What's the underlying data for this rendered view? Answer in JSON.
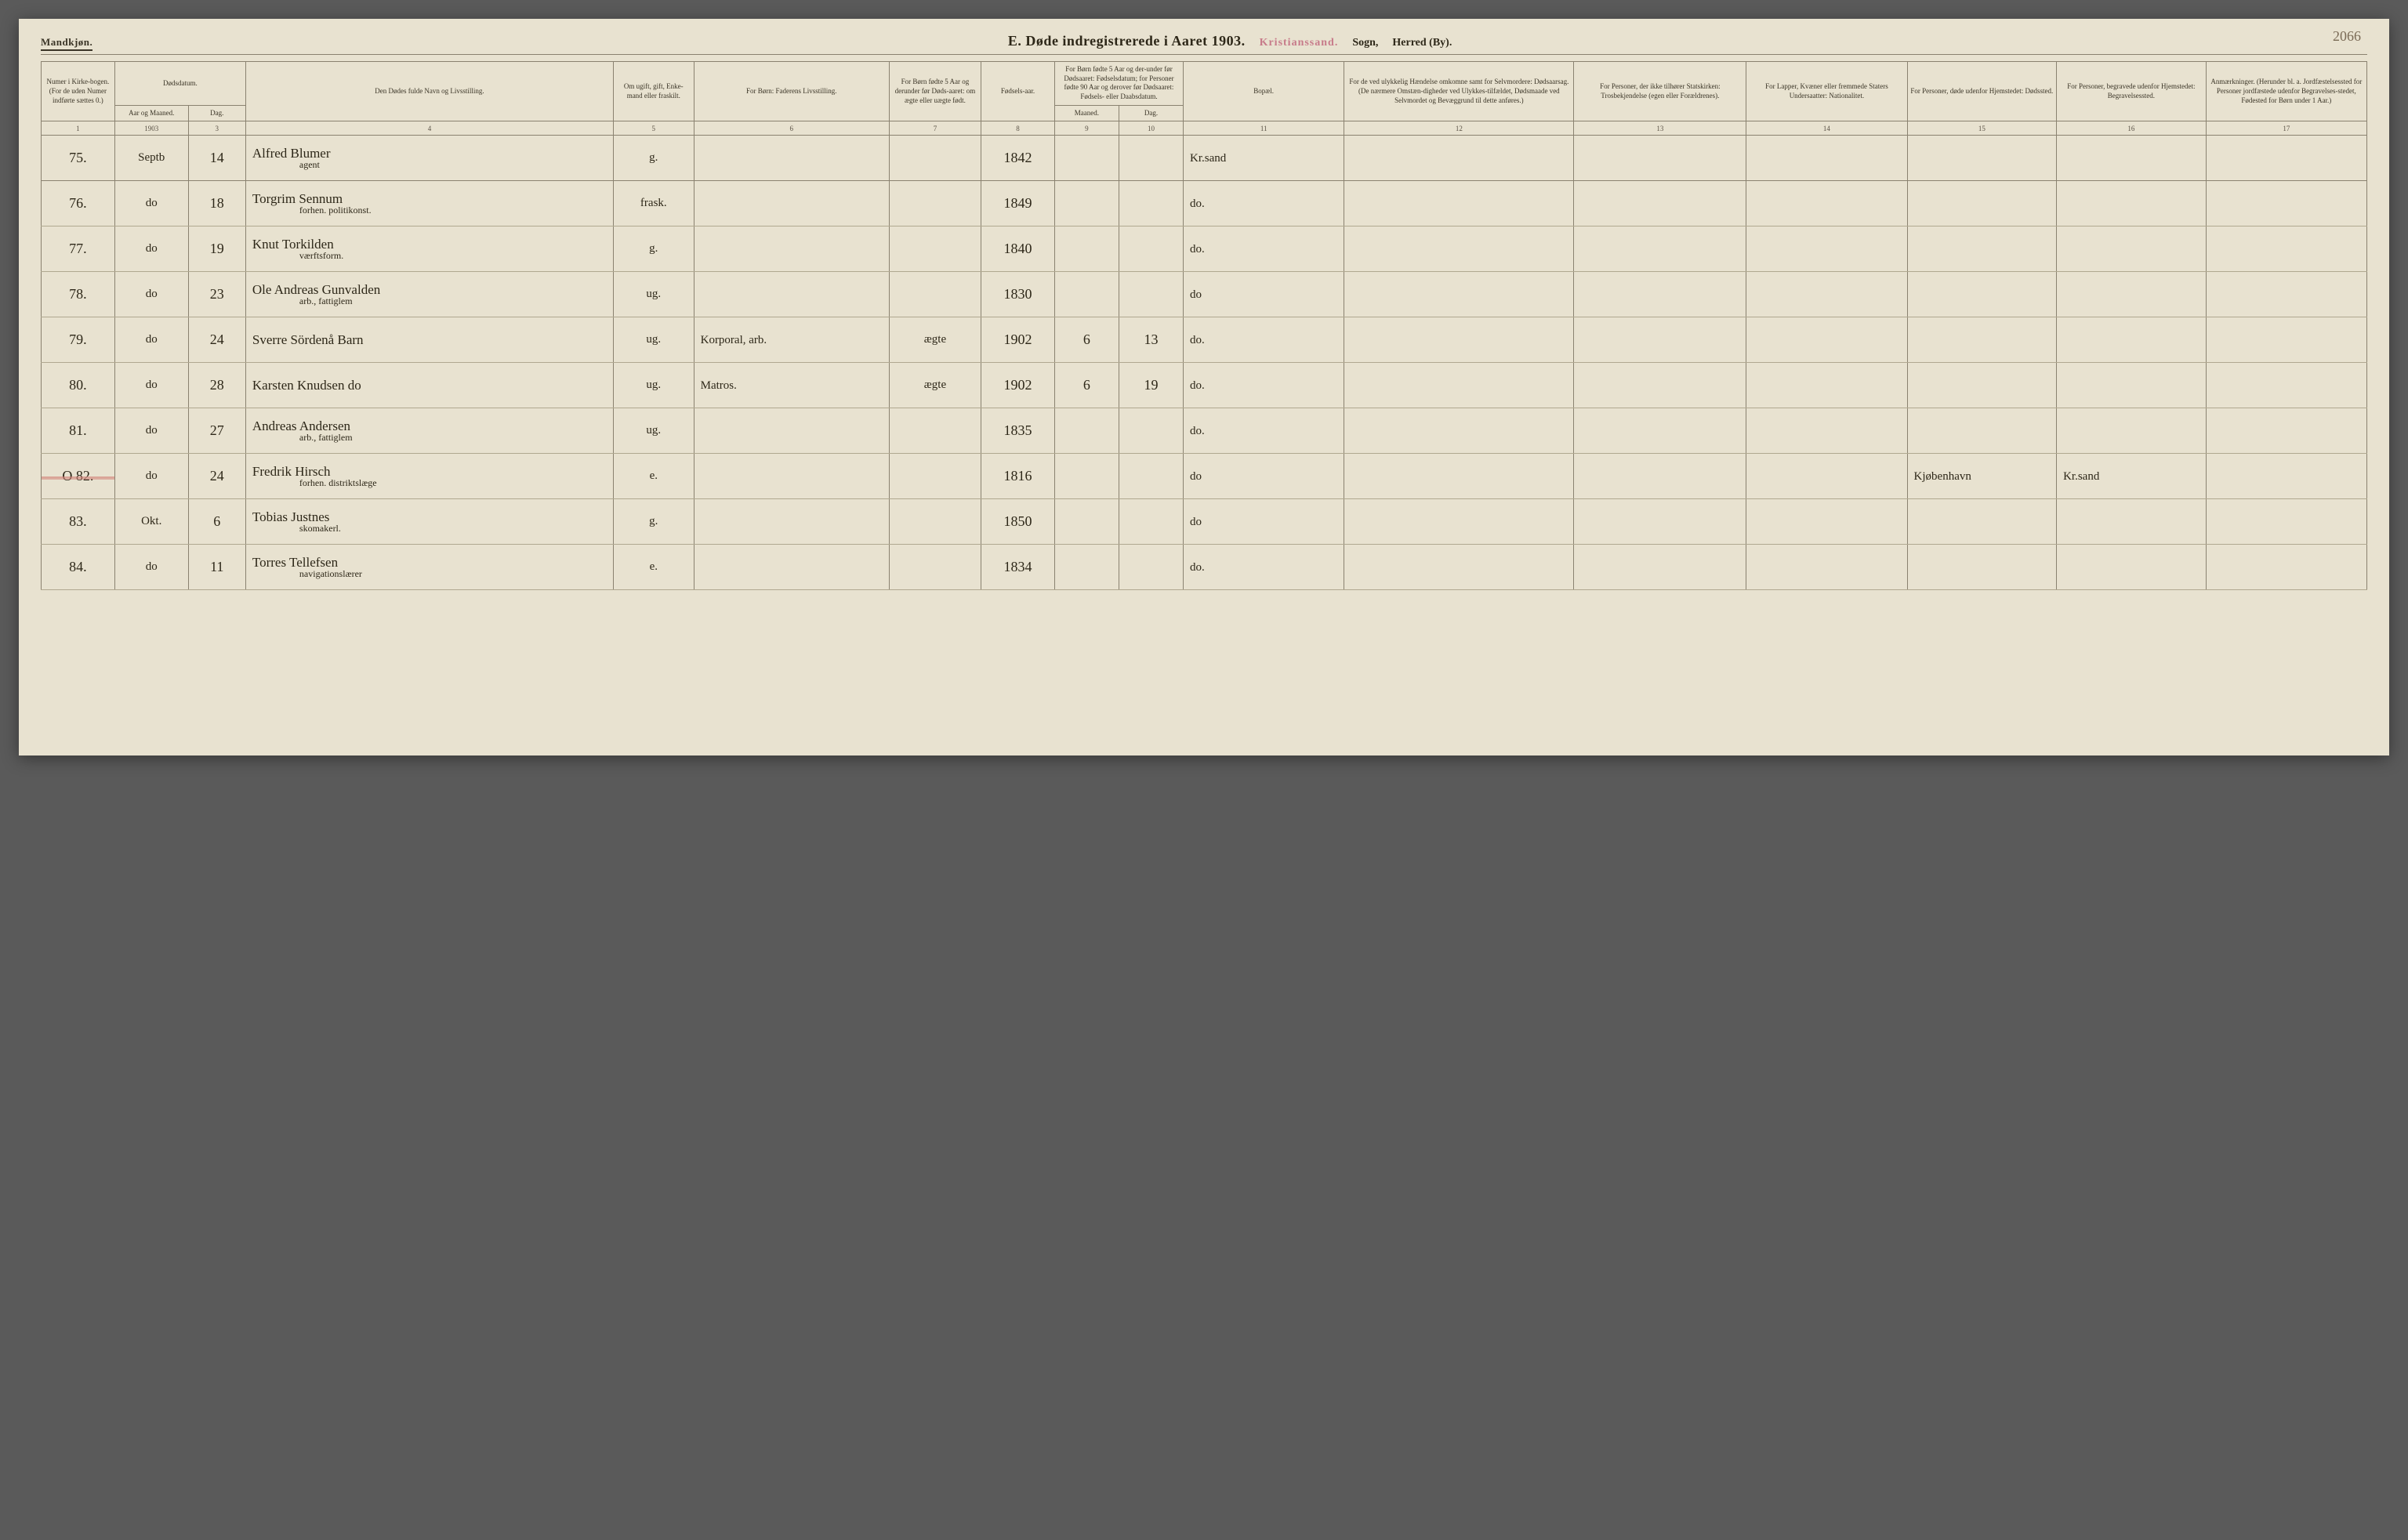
{
  "page_number": "2066",
  "header": {
    "gender": "Mandkjøn.",
    "title": "E.  Døde indregistrerede i Aaret 1903.",
    "stamp": "Kristianssand.",
    "sogn_label": "Sogn,",
    "herred_label": "Herred (By)."
  },
  "columns": {
    "c1": "Numer i Kirke-bogen. (For de uden Numer indførte sættes 0.)",
    "c2a": "Dødsdatum.",
    "c2b_a": "Aar og Maaned.",
    "c2b_b": "Dag.",
    "c4": "Den Dødes fulde Navn og Livsstilling.",
    "c5": "Om ugift, gift, Enke-mand eller fraskilt.",
    "c6": "For Børn: Faderens Livsstilling.",
    "c7": "For Børn fødte 5 Aar og derunder før Døds-aaret: om ægte eller uægte født.",
    "c8": "Fødsels-aar.",
    "c9_10_top": "For Børn fødte 5 Aar og der-under før Dødsaaret: Fødselsdatum; for Personer fødte 90 Aar og derover før Dødsaaret: Fødsels- eller Daabsdatum.",
    "c9": "Maaned.",
    "c10": "Dag.",
    "c11": "Bopæl.",
    "c12": "For de ved ulykkelig Hændelse omkomne samt for Selvmordere: Dødsaarsag. (De nærmere Omstæn-digheder ved Ulykkes-tilfældet, Dødsmaade ved Selvmordet og Bevæggrund til dette anføres.)",
    "c13": "For Personer, der ikke tilhører Statskirken: Trosbekjendelse (egen eller Forældrenes).",
    "c14": "For Lapper, Kvæner eller fremmede Staters Undersaatter: Nationalitet.",
    "c15": "For Personer, døde udenfor Hjemstedet: Dødssted.",
    "c16": "For Personer, begravede udenfor Hjemstedet: Begravelsessted.",
    "c17": "Anmærkninger. (Herunder bl. a. Jordfæstelsessted for Personer jordfæstede udenfor Begravelses-stedet, Fødested for Børn under 1 Aar.)"
  },
  "colnums": [
    "1",
    "",
    "3",
    "4",
    "5",
    "6",
    "7",
    "8",
    "9",
    "10",
    "11",
    "12",
    "13",
    "14",
    "15",
    "16",
    "17"
  ],
  "year_heading": "1903",
  "rows": [
    {
      "num": "75.",
      "mon": "Septb",
      "day": "14",
      "name": "Alfred Blumer",
      "sub": "agent",
      "status": "g.",
      "father": "",
      "legit": "",
      "byear": "1842",
      "bm": "",
      "bd": "",
      "place": "Kr.sand",
      "c12": "",
      "c13": "",
      "c14": "",
      "c15": "",
      "c16": "",
      "c17": ""
    },
    {
      "num": "76.",
      "mon": "do",
      "day": "18",
      "name": "Torgrim Sennum",
      "sub": "forhen. politikonst.",
      "status": "frask.",
      "father": "",
      "legit": "",
      "byear": "1849",
      "bm": "",
      "bd": "",
      "place": "do.",
      "c12": "",
      "c13": "",
      "c14": "",
      "c15": "",
      "c16": "",
      "c17": ""
    },
    {
      "num": "77.",
      "mon": "do",
      "day": "19",
      "name": "Knut Torkilden",
      "sub": "værftsform.",
      "status": "g.",
      "father": "",
      "legit": "",
      "byear": "1840",
      "bm": "",
      "bd": "",
      "place": "do.",
      "c12": "",
      "c13": "",
      "c14": "",
      "c15": "",
      "c16": "",
      "c17": ""
    },
    {
      "num": "78.",
      "mon": "do",
      "day": "23",
      "name": "Ole Andreas Gunvalden",
      "sub": "arb., fattiglem",
      "status": "ug.",
      "father": "",
      "legit": "",
      "byear": "1830",
      "bm": "",
      "bd": "",
      "place": "do",
      "c12": "",
      "c13": "",
      "c14": "",
      "c15": "",
      "c16": "",
      "c17": "",
      "purple_year": true
    },
    {
      "num": "79.",
      "mon": "do",
      "day": "24",
      "name": "Sverre Sördenå Barn",
      "sub": "",
      "status": "ug.",
      "father": "Korporal, arb.",
      "legit": "ægte",
      "byear": "1902",
      "bm": "6",
      "bd": "13",
      "place": "do.",
      "c12": "",
      "c13": "",
      "c14": "",
      "c15": "",
      "c16": "",
      "c17": ""
    },
    {
      "num": "80.",
      "mon": "do",
      "day": "28",
      "name": "Karsten Knudsen  do",
      "sub": "",
      "status": "ug.",
      "father": "Matros.",
      "legit": "ægte",
      "byear": "1902",
      "bm": "6",
      "bd": "19",
      "place": "do.",
      "c12": "",
      "c13": "",
      "c14": "",
      "c15": "",
      "c16": "",
      "c17": ""
    },
    {
      "num": "81.",
      "mon": "do",
      "day": "27",
      "name": "Andreas Andersen",
      "sub": "arb., fattiglem",
      "status": "ug.",
      "father": "",
      "legit": "",
      "byear": "1835",
      "bm": "",
      "bd": "",
      "place": "do.",
      "c12": "",
      "c13": "",
      "c14": "",
      "c15": "",
      "c16": "",
      "c17": ""
    },
    {
      "num": "O 82.",
      "mon": "do",
      "day": "24",
      "name": "Fredrik Hirsch",
      "sub": "forhen. distriktslæge",
      "status": "e.",
      "father": "",
      "legit": "",
      "byear": "1816",
      "bm": "",
      "bd": "",
      "place": "do",
      "c12": "",
      "c13": "",
      "c14": "",
      "c15": "Kjøbenhavn",
      "c16": "Kr.sand",
      "c17": "",
      "struck": true
    },
    {
      "num": "83.",
      "mon": "Okt.",
      "day": "6",
      "name": "Tobias Justnes",
      "sub": "skomakerl.",
      "status": "g.",
      "father": "",
      "legit": "",
      "byear": "1850",
      "bm": "",
      "bd": "",
      "place": "do",
      "c12": "",
      "c13": "",
      "c14": "",
      "c15": "",
      "c16": "",
      "c17": ""
    },
    {
      "num": "84.",
      "mon": "do",
      "day": "11",
      "name": "Torres Tellefsen",
      "sub": "navigationslærer",
      "status": "e.",
      "father": "",
      "legit": "",
      "byear": "1834",
      "bm": "",
      "bd": "",
      "place": "do.",
      "c12": "",
      "c13": "",
      "c14": "",
      "c15": "",
      "c16": "",
      "c17": ""
    }
  ]
}
